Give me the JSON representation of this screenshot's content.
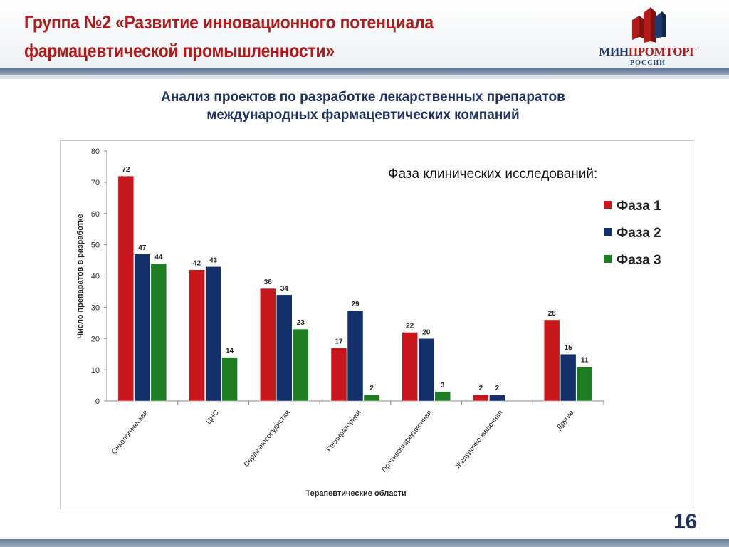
{
  "header": {
    "title_line1": "Группа №2 «Развитие инновационного потенциала",
    "title_line2": "фармацевтической промышленности»"
  },
  "logo": {
    "brand_part1": "МИН",
    "brand_part2": "ПРОМТОРГ",
    "country": "РОССИИ"
  },
  "subtitle": {
    "line1": "Анализ проектов по разработке лекарственных препаратов",
    "line2": "международных фармацевтических компаний"
  },
  "phase_caption": "Фаза клинических исследований:",
  "page_number": "16",
  "colors": {
    "title_red": "#b21a1a",
    "navy": "#1d3061",
    "phase1": "#c8161d",
    "phase2": "#14306b",
    "phase3": "#1e7d22"
  },
  "chart_data": {
    "type": "bar",
    "xlabel": "Терапевтические области",
    "ylabel": "Число препаратов  в разработке",
    "ylim": [
      0,
      80
    ],
    "yticks": [
      0,
      10,
      20,
      30,
      40,
      50,
      60,
      70,
      80
    ],
    "grid": false,
    "legend_position": "right",
    "categories": [
      "Онкологическая",
      "ЦНС",
      "Сердечнососудистая",
      "Респираторная",
      "Противоинфекционная",
      "Желудочно-кишечная",
      "Другие"
    ],
    "series": [
      {
        "name": "Фаза 1",
        "color": "#c8161d",
        "values": [
          72,
          42,
          36,
          17,
          22,
          2,
          26
        ]
      },
      {
        "name": "Фаза 2",
        "color": "#14306b",
        "values": [
          47,
          43,
          34,
          29,
          20,
          2,
          15
        ]
      },
      {
        "name": "Фаза 3",
        "color": "#1e7d22",
        "values": [
          44,
          14,
          23,
          2,
          3,
          null,
          11
        ]
      }
    ]
  }
}
